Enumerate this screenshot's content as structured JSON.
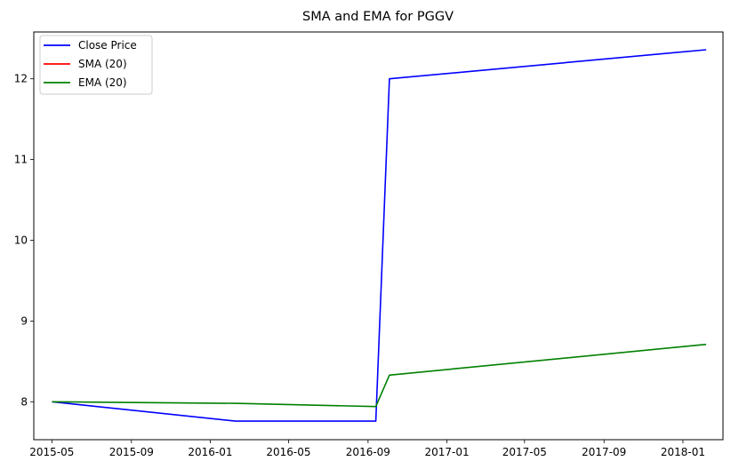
{
  "chart_data": {
    "type": "line",
    "title": "SMA and EMA for PGGV",
    "xlabel": "",
    "ylabel": "",
    "x_axis_type": "date",
    "xlim": [
      "2015-04-03",
      "2018-03-04"
    ],
    "ylim": [
      7.53,
      12.58
    ],
    "x_ticks": [
      "2015-05",
      "2015-09",
      "2016-01",
      "2016-05",
      "2016-09",
      "2017-01",
      "2017-05",
      "2017-09",
      "2018-01"
    ],
    "y_ticks": [
      8,
      9,
      10,
      11,
      12
    ],
    "grid": false,
    "legend_position": "top-left",
    "series": [
      {
        "name": "Close Price",
        "color": "#0000ff",
        "points": [
          {
            "x": "2015-05-01",
            "y": 8.0
          },
          {
            "x": "2016-02-09",
            "y": 7.76
          },
          {
            "x": "2016-09-13",
            "y": 7.76
          },
          {
            "x": "2016-10-04",
            "y": 12.0
          },
          {
            "x": "2018-02-06",
            "y": 12.36
          }
        ]
      },
      {
        "name": "SMA (20)",
        "color": "#ff0000",
        "points": []
      },
      {
        "name": "EMA (20)",
        "color": "#008000",
        "points": [
          {
            "x": "2015-05-01",
            "y": 8.0
          },
          {
            "x": "2016-02-09",
            "y": 7.98
          },
          {
            "x": "2016-09-13",
            "y": 7.94
          },
          {
            "x": "2016-10-04",
            "y": 8.33
          },
          {
            "x": "2018-02-06",
            "y": 8.71
          }
        ]
      }
    ]
  }
}
